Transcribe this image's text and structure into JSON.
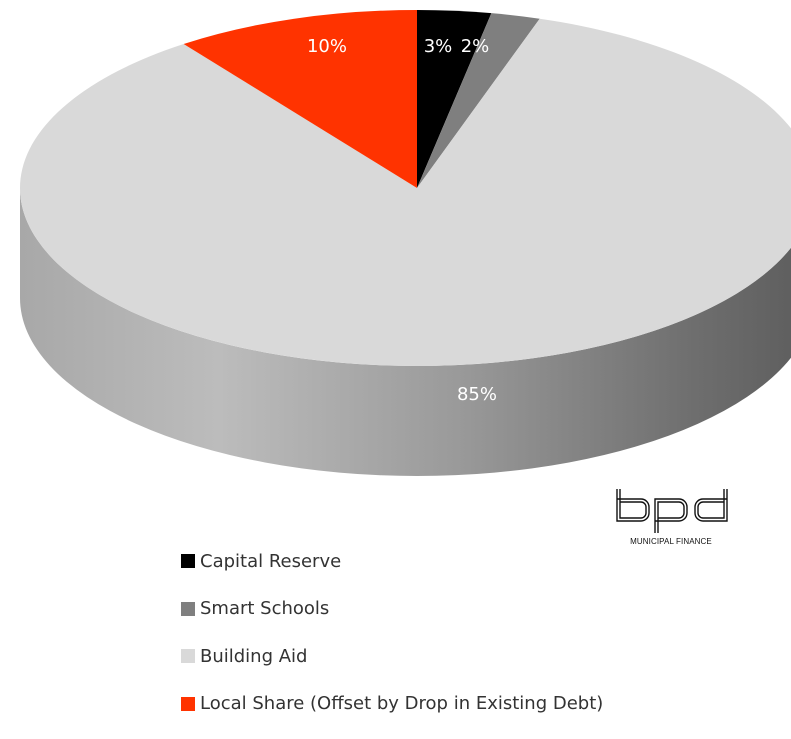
{
  "chart_data": {
    "type": "pie",
    "style": "3d",
    "slices": [
      {
        "label": "Capital Reserve",
        "value": 3,
        "display": "3%",
        "color": "#000000",
        "label_color": "#ffffff"
      },
      {
        "label": "Smart Schools",
        "value": 2,
        "display": "2%",
        "color": "#7f7f7f",
        "label_color": "#ffffff"
      },
      {
        "label": "Building Aid",
        "value": 85,
        "display": "85%",
        "color": "#d9d9d9",
        "label_color": "#ffffff"
      },
      {
        "label": "Local Share (Offset by Drop in Existing Debt)",
        "value": 10,
        "display": "10%",
        "color": "#ff3300",
        "label_color": "#ffffff"
      }
    ],
    "legend": {
      "position": "bottom-left"
    }
  },
  "logo": {
    "wordmark": "bpd",
    "caption": "MUNICIPAL FINANCE"
  }
}
